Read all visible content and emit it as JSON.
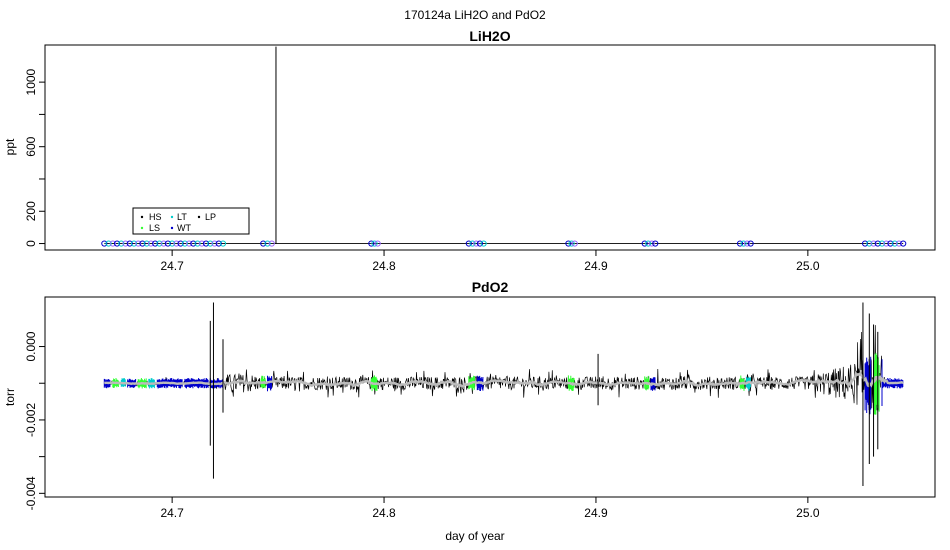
{
  "page_title": "170124a   LiH2O and PdO2",
  "chart_data": [
    {
      "type": "line",
      "title": "LiH2O",
      "xlabel": "",
      "ylabel": "ppt",
      "xlim": [
        24.64,
        25.06
      ],
      "ylim": [
        -40,
        1230
      ],
      "x_ticks": [
        "24.7",
        "24.8",
        "24.9",
        "25.0"
      ],
      "y_ticks": [
        "0",
        "200",
        "600",
        "1000"
      ],
      "legend": {
        "placement": "lower-left",
        "entries": [
          {
            "label": "HS",
            "color": "#000000"
          },
          {
            "label": "LT",
            "color": "#00cccc"
          },
          {
            "label": "LP",
            "color": "#000000"
          },
          {
            "label": "LS",
            "color": "#33ff33"
          },
          {
            "label": "WT",
            "color": "#0000cc"
          }
        ]
      },
      "spike": {
        "x": 24.749,
        "y": 1220
      },
      "marker_clusters": [
        {
          "from": 24.668,
          "to": 24.724,
          "y": 0
        },
        {
          "from": 24.743,
          "to": 24.747,
          "y": 0
        },
        {
          "from": 24.794,
          "to": 24.797,
          "y": 0
        },
        {
          "from": 24.84,
          "to": 24.847,
          "y": 0
        },
        {
          "from": 24.887,
          "to": 24.89,
          "y": 0
        },
        {
          "from": 24.923,
          "to": 24.928,
          "y": 0
        },
        {
          "from": 24.968,
          "to": 24.973,
          "y": 0
        },
        {
          "from": 25.027,
          "to": 25.045,
          "y": 0
        }
      ],
      "marker_colors": [
        "#0000cc",
        "#00cccc",
        "#9966ff"
      ]
    },
    {
      "type": "line",
      "title": "PdO2",
      "xlabel": "day of year",
      "ylabel": "torr",
      "xlim": [
        24.64,
        25.06
      ],
      "ylim": [
        -0.0041,
        0.00135
      ],
      "x_ticks": [
        "24.7",
        "24.8",
        "24.9",
        "25.0"
      ],
      "y_ticks": [
        "-0.004",
        "-0.002",
        "0.000"
      ],
      "baseline": -0.001,
      "series": [
        {
          "color": "#000000",
          "range": [
            24.668,
            25.045
          ]
        },
        {
          "color": "#bbbbbb",
          "range": [
            24.668,
            25.045
          ]
        }
      ],
      "colored_segments": [
        {
          "from": 24.668,
          "to": 24.671,
          "color": "#0000cc"
        },
        {
          "from": 24.672,
          "to": 24.675,
          "color": "#33ff33"
        },
        {
          "from": 24.676,
          "to": 24.678,
          "color": "#00cccc"
        },
        {
          "from": 24.679,
          "to": 24.683,
          "color": "#0000cc"
        },
        {
          "from": 24.684,
          "to": 24.688,
          "color": "#33ff33"
        },
        {
          "from": 24.689,
          "to": 24.692,
          "color": "#00cccc"
        },
        {
          "from": 24.693,
          "to": 24.705,
          "color": "#0000cc"
        },
        {
          "from": 24.706,
          "to": 24.717,
          "color": "#0000cc"
        },
        {
          "from": 24.718,
          "to": 24.724,
          "color": "#0000cc"
        },
        {
          "from": 24.742,
          "to": 24.744,
          "color": "#33ff33"
        },
        {
          "from": 24.745,
          "to": 24.747,
          "color": "#0000cc"
        },
        {
          "from": 24.794,
          "to": 24.797,
          "color": "#33ff33"
        },
        {
          "from": 24.84,
          "to": 24.843,
          "color": "#33ff33"
        },
        {
          "from": 24.844,
          "to": 24.847,
          "color": "#0000cc"
        },
        {
          "from": 24.887,
          "to": 24.89,
          "color": "#33ff33"
        },
        {
          "from": 24.923,
          "to": 24.925,
          "color": "#33ff33"
        },
        {
          "from": 24.926,
          "to": 24.928,
          "color": "#0000cc"
        },
        {
          "from": 24.968,
          "to": 24.97,
          "color": "#33ff33"
        },
        {
          "from": 24.971,
          "to": 24.973,
          "color": "#00cccc"
        },
        {
          "from": 25.027,
          "to": 25.03,
          "color": "#0000cc"
        },
        {
          "from": 25.031,
          "to": 25.034,
          "color": "#33ff33"
        },
        {
          "from": 25.035,
          "to": 25.045,
          "color": "#0000cc"
        }
      ],
      "spikes": [
        {
          "x": 24.7195,
          "high": 0.0012,
          "low": -0.0036
        },
        {
          "x": 24.718,
          "high": 0.0007,
          "low": -0.0027
        },
        {
          "x": 24.724,
          "high": 0.0002,
          "low": -0.0018
        },
        {
          "x": 24.901,
          "high": -0.0002,
          "low": -0.0016
        },
        {
          "x": 25.026,
          "high": 0.0012,
          "low": -0.0038
        },
        {
          "x": 25.029,
          "high": 0.0009,
          "low": -0.0032
        },
        {
          "x": 25.033,
          "high": 0.0004,
          "low": -0.0028
        },
        {
          "x": 25.031,
          "high": 0.0006,
          "low": -0.003
        }
      ]
    }
  ]
}
